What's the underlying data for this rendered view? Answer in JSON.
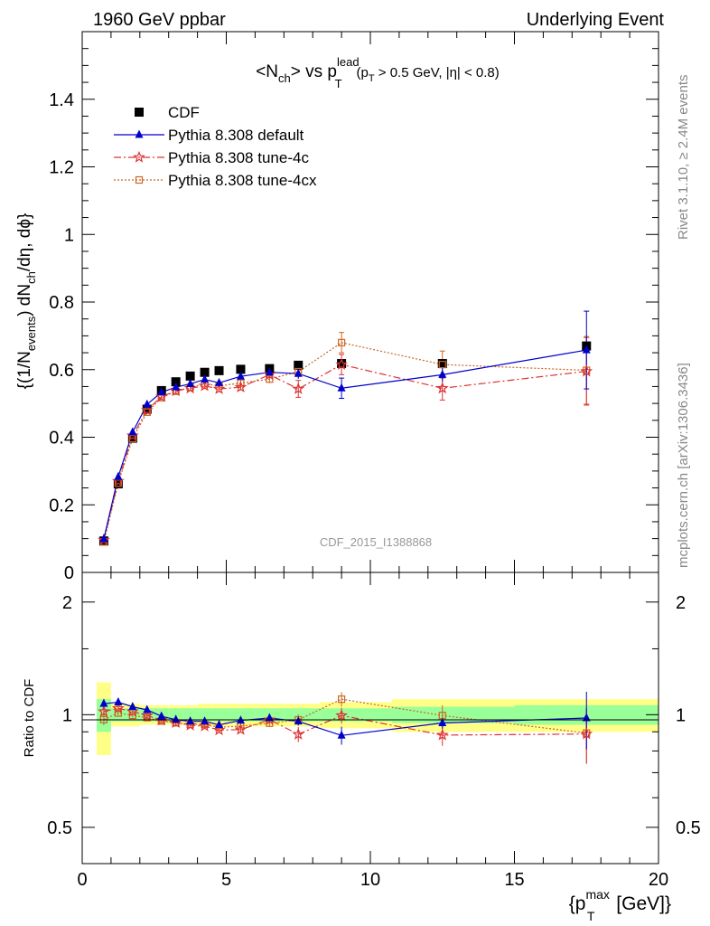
{
  "header": {
    "left": "1960 GeV ppbar",
    "right": "Underlying Event"
  },
  "side_labels": {
    "rivet": "Rivet 3.1.10, ≥ 2.4M events",
    "mcplots": "mcplots.cern.ch [arXiv:1306.3436]"
  },
  "watermark": "CDF_2015_I1388868",
  "colors": {
    "cdf": "#000000",
    "default": "#0000cc",
    "tune4c": "#dd3333",
    "tune4cx": "#cc6622",
    "band_yellow": "#ffff88",
    "band_green": "#99ff99"
  },
  "chart_data": {
    "type": "line",
    "title": {
      "main": "<N",
      "main_sub": "ch",
      "main_mid": "> vs p",
      "main_sup": "lead",
      "main_sub2": "T",
      "cut1": "(p",
      "cut1_sub": "T",
      "cut2": " > 0.5 GeV, |η| < 0.8)"
    },
    "ylabel": {
      "a": "{(1/N",
      "a_sub": "events",
      "b": ") dN",
      "b_sub": "ch",
      "c": "/dη, dϕ}"
    },
    "xlabel": {
      "a": "{p",
      "a_sup": "max",
      "a_sub": "T",
      "b": " [GeV]}"
    },
    "ratio_ylabel": "Ratio to CDF",
    "xlim": [
      0,
      20
    ],
    "ylim": [
      0,
      1.6
    ],
    "ratio_ylim": [
      0.4,
      2.4
    ],
    "log_ratio_axis": true,
    "x_ticks": [
      "0",
      "5",
      "10",
      "15",
      "20"
    ],
    "y_ticks": [
      "0",
      "0.2",
      "0.4",
      "0.6",
      "0.8",
      "1",
      "1.2",
      "1.4"
    ],
    "ratio_ticks": [
      "0.5",
      "1",
      "2"
    ],
    "legend_position": "top-left",
    "series": [
      {
        "name": "CDF",
        "x": [
          0.75,
          1.25,
          1.75,
          2.25,
          2.75,
          3.25,
          3.75,
          4.25,
          4.75,
          5.5,
          6.5,
          7.5,
          9.0,
          12.5,
          17.5
        ],
        "y": [
          0.093,
          0.262,
          0.397,
          0.483,
          0.538,
          0.564,
          0.581,
          0.592,
          0.597,
          0.601,
          0.603,
          0.613,
          0.618,
          0.618,
          0.67
        ],
        "ratio_band_yellow": [
          0.22,
          0.07,
          0.07,
          0.06,
          0.06,
          0.06,
          0.06,
          0.07,
          0.07,
          0.07,
          0.07,
          0.07,
          0.08,
          0.1,
          0.1
        ],
        "ratio_band_green": [
          0.1,
          0.04,
          0.04,
          0.04,
          0.04,
          0.04,
          0.04,
          0.04,
          0.04,
          0.04,
          0.04,
          0.04,
          0.04,
          0.05,
          0.06
        ]
      },
      {
        "name": "Pythia 8.308 default",
        "x": [
          0.75,
          1.25,
          1.75,
          2.25,
          2.75,
          3.25,
          3.75,
          4.25,
          4.75,
          5.5,
          6.5,
          7.5,
          9.0,
          12.5,
          17.5
        ],
        "y": [
          0.099,
          0.283,
          0.415,
          0.497,
          0.533,
          0.548,
          0.558,
          0.571,
          0.561,
          0.58,
          0.592,
          0.588,
          0.545,
          0.585,
          0.658
        ],
        "yerr": [
          0.003,
          0.004,
          0.005,
          0.006,
          0.007,
          0.008,
          0.008,
          0.009,
          0.01,
          0.009,
          0.012,
          0.015,
          0.03,
          0.02,
          0.115
        ],
        "ratio": [
          1.07,
          1.08,
          1.05,
          1.03,
          0.99,
          0.97,
          0.96,
          0.96,
          0.94,
          0.965,
          0.98,
          0.96,
          0.88,
          0.95,
          0.98
        ]
      },
      {
        "name": "Pythia 8.308 tune-4c",
        "x": [
          0.75,
          1.25,
          1.75,
          2.25,
          2.75,
          3.25,
          3.75,
          4.25,
          4.75,
          5.5,
          6.5,
          7.5,
          9.0,
          12.5,
          17.5
        ],
        "y": [
          0.096,
          0.27,
          0.405,
          0.48,
          0.52,
          0.537,
          0.545,
          0.552,
          0.543,
          0.548,
          0.585,
          0.543,
          0.615,
          0.545,
          0.595
        ],
        "yerr": [
          0.003,
          0.004,
          0.005,
          0.006,
          0.007,
          0.008,
          0.008,
          0.009,
          0.01,
          0.009,
          0.012,
          0.025,
          0.03,
          0.035,
          0.1
        ],
        "ratio": [
          1.02,
          1.04,
          1.02,
          0.995,
          0.967,
          0.952,
          0.937,
          0.932,
          0.91,
          0.912,
          0.97,
          0.886,
          0.995,
          0.882,
          0.888
        ]
      },
      {
        "name": "Pythia 8.308 tune-4cx",
        "x": [
          0.75,
          1.25,
          1.75,
          2.25,
          2.75,
          3.25,
          3.75,
          4.25,
          4.75,
          5.5,
          6.5,
          7.5,
          9.0,
          12.5,
          17.5
        ],
        "y": [
          0.09,
          0.264,
          0.396,
          0.474,
          0.517,
          0.536,
          0.548,
          0.558,
          0.552,
          0.56,
          0.572,
          0.594,
          0.68,
          0.615,
          0.598
        ],
        "yerr": [
          0.003,
          0.004,
          0.005,
          0.006,
          0.007,
          0.008,
          0.008,
          0.009,
          0.01,
          0.009,
          0.012,
          0.02,
          0.03,
          0.04,
          0.1
        ],
        "ratio": [
          0.97,
          1.01,
          0.996,
          0.982,
          0.961,
          0.951,
          0.943,
          0.942,
          0.925,
          0.932,
          0.949,
          0.969,
          1.1,
          0.995,
          0.893
        ]
      }
    ]
  }
}
